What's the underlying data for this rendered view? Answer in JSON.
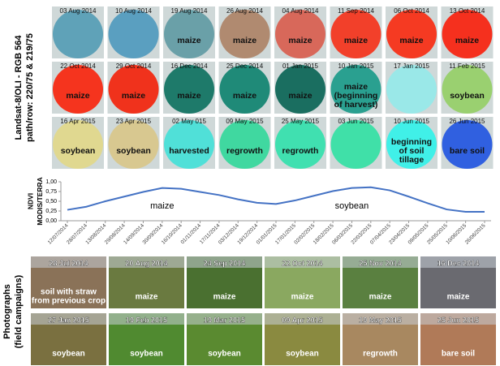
{
  "satellite": {
    "label_lines": [
      "Landsat-8/OLI - RGB 564",
      "path/row: 220/75 & 219/75"
    ],
    "tiles": [
      {
        "date": "03 Aug 2014",
        "label": [],
        "color": "#5fa2b8"
      },
      {
        "date": "10 Aug 2014",
        "label": [],
        "color": "#5a9fc0"
      },
      {
        "date": "19 Aug 2014",
        "label": [
          "maize"
        ],
        "color": "#6aa0a8"
      },
      {
        "date": "26 Aug 2014",
        "label": [
          "maize"
        ],
        "color": "#b08a70"
      },
      {
        "date": "04 Aug 2014",
        "label": [
          "maize"
        ],
        "color": "#d8685a"
      },
      {
        "date": "11 Sep 2014",
        "label": [
          "maize"
        ],
        "color": "#f2402a"
      },
      {
        "date": "06 Oct 2014",
        "label": [
          "maize"
        ],
        "color": "#f53a22"
      },
      {
        "date": "13 Oct 2014",
        "label": [
          "maize"
        ],
        "color": "#f5301e"
      },
      {
        "date": "22 Oct 2014",
        "label": [
          "maize"
        ],
        "color": "#f5341e"
      },
      {
        "date": "29 Oct 2014",
        "label": [
          "maize"
        ],
        "color": "#f0321c"
      },
      {
        "date": "16 Dec 2014",
        "label": [
          "maize"
        ],
        "color": "#1e7a6a"
      },
      {
        "date": "25 Dec 2014",
        "label": [
          "maize"
        ],
        "color": "#1f8a78"
      },
      {
        "date": "01 Jan 2015",
        "label": [
          "maize"
        ],
        "color": "#1a6e60"
      },
      {
        "date": "10 Jan 2015",
        "label": [
          "maize",
          "(beginning",
          "of harvest)"
        ],
        "color": "#2aa090"
      },
      {
        "date": "17 Jan 2015",
        "label": [],
        "color": "#9ae8e8"
      },
      {
        "date": "11 Feb 2015",
        "label": [
          "soybean"
        ],
        "color": "#9ad070"
      },
      {
        "date": "16 Apr 2015",
        "label": [
          "soybean"
        ],
        "color": "#e0d890"
      },
      {
        "date": "23 Apr 2015",
        "label": [
          "soybean"
        ],
        "color": "#d8c890"
      },
      {
        "date": "02 May 015",
        "label": [
          "harvested"
        ],
        "color": "#50e0d8"
      },
      {
        "date": "09 May 2015",
        "label": [
          "regrowth"
        ],
        "color": "#40d8a0"
      },
      {
        "date": "25 May 2015",
        "label": [
          "regrowth"
        ],
        "color": "#40e0b0"
      },
      {
        "date": "03 Jun 2015",
        "label": [],
        "color": "#40e0a8"
      },
      {
        "date": "10 Jun 2015",
        "label": [
          "beginning",
          "of soil",
          "tillage"
        ],
        "color": "#40f0e8"
      },
      {
        "date": "26 Jun 2015",
        "label": [
          "bare soil"
        ],
        "color": "#3060e0"
      }
    ]
  },
  "chart_data": {
    "type": "line",
    "ylabel_lines": [
      "NDVI",
      "MODIS/TERRA"
    ],
    "color": "#4472c4",
    "categories": [
      "12/07/2014",
      "28/07/2014",
      "13/08/2014",
      "29/08/2014",
      "14/09/2014",
      "30/09/2014",
      "16/10/2014",
      "01/11/2014",
      "17/11/2014",
      "03/12/2014",
      "19/12/2014",
      "01/01/2015",
      "17/01/2015",
      "02/02/2015",
      "18/02/2015",
      "06/03/2015",
      "22/03/2015",
      "07/04/2015",
      "23/04/2015",
      "09/05/2015",
      "25/05/2015",
      "10/06/2015",
      "26/06/2015"
    ],
    "values": [
      0.28,
      0.36,
      0.5,
      0.62,
      0.74,
      0.84,
      0.82,
      0.74,
      0.66,
      0.55,
      0.46,
      0.43,
      0.52,
      0.64,
      0.76,
      0.84,
      0.86,
      0.78,
      0.62,
      0.45,
      0.29,
      0.23,
      0.23
    ],
    "ylim": [
      0,
      1
    ],
    "yticks": [
      {
        "value": 0,
        "label": "0,00"
      },
      {
        "value": 0.25,
        "label": "0,25"
      },
      {
        "value": 0.5,
        "label": "0,50"
      },
      {
        "value": 0.75,
        "label": "0,75"
      },
      {
        "value": 1,
        "label": "1,00"
      }
    ],
    "annotations": [
      {
        "text": "maize",
        "x": 5
      },
      {
        "text": "soybean",
        "x": 15
      }
    ]
  },
  "photos": {
    "label_lines": [
      "Photographs",
      "(field campaigns)"
    ],
    "tiles": [
      {
        "date": "28 Jul 2014",
        "label": [
          "soil with straw",
          "from previous crop"
        ],
        "color": "#8a7258"
      },
      {
        "date": "20 Aug 2014",
        "label": [
          "maize"
        ],
        "color": "#6a7a40"
      },
      {
        "date": "24 Sep 2014",
        "label": [
          "maize"
        ],
        "color": "#4a7030"
      },
      {
        "date": "22 Oct 2014",
        "label": [
          "maize"
        ],
        "color": "#8aa860"
      },
      {
        "date": "25 Nov 2014",
        "label": [
          "maize"
        ],
        "color": "#5a8040"
      },
      {
        "date": "16 Dec 2014",
        "label": [
          "maize"
        ],
        "color": "#6a6a70"
      },
      {
        "date": "27 Jan 2015",
        "label": [
          "soybean"
        ],
        "color": "#7a7040"
      },
      {
        "date": "19 Feb 2015",
        "label": [
          "soybean"
        ],
        "color": "#508a30"
      },
      {
        "date": "19 Mar 2015",
        "label": [
          "soybean"
        ],
        "color": "#5a8a30"
      },
      {
        "date": "09 Apr 2015",
        "label": [
          "soybean"
        ],
        "color": "#8a8a40"
      },
      {
        "date": "19 May 2015",
        "label": [
          "regrowth"
        ],
        "color": "#a88860"
      },
      {
        "date": "25 Jun 2015",
        "label": [
          "bare soil"
        ],
        "color": "#b07a58"
      }
    ]
  }
}
